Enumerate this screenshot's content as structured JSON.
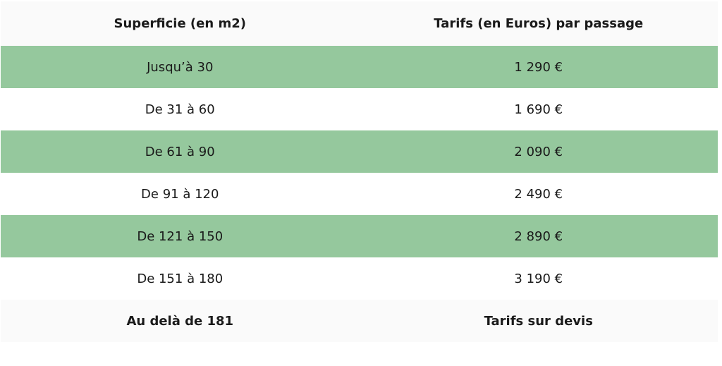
{
  "table": {
    "header": [
      "Superficie (en m2)",
      "Tarifs (en Euros) par passage"
    ],
    "rows": [
      [
        "Jusqu’à 30",
        "1 290 €"
      ],
      [
        "De 31 à 60",
        "1 690 €"
      ],
      [
        "De 61 à 90",
        "2 090 €"
      ],
      [
        "De 91 à 120",
        "2 490 €"
      ],
      [
        "De 121 à 150",
        "2 890 €"
      ],
      [
        "De 151 à 180",
        "3 190 €"
      ],
      [
        "Au delà de 181",
        "Tarifs sur devis"
      ]
    ]
  }
}
